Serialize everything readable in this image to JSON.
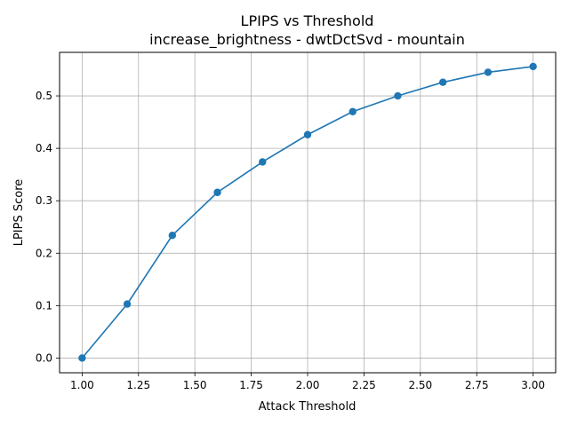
{
  "chart_data": {
    "type": "line",
    "title": "LPIPS vs Threshold",
    "subtitle": "increase_brightness - dwtDctSvd - mountain",
    "xlabel": "Attack Threshold",
    "ylabel": "LPIPS Score",
    "xlim": [
      0.9,
      3.1
    ],
    "ylim": [
      -0.028,
      0.583
    ],
    "x_ticks": [
      1.0,
      1.25,
      1.5,
      1.75,
      2.0,
      2.25,
      2.5,
      2.75,
      3.0
    ],
    "x_tick_labels": [
      "1.00",
      "1.25",
      "1.50",
      "1.75",
      "2.00",
      "2.25",
      "2.50",
      "2.75",
      "3.00"
    ],
    "y_ticks": [
      0.0,
      0.1,
      0.2,
      0.3,
      0.4,
      0.5
    ],
    "y_tick_labels": [
      "0.0",
      "0.1",
      "0.2",
      "0.3",
      "0.4",
      "0.5"
    ],
    "grid": true,
    "line_color": "#1f77b4",
    "marker": "circle",
    "series": [
      {
        "x": [
          1.0,
          1.2,
          1.4,
          1.6,
          1.8,
          2.0,
          2.2,
          2.4,
          2.6,
          2.8,
          3.0
        ],
        "values": [
          0.0,
          0.103,
          0.234,
          0.316,
          0.374,
          0.426,
          0.47,
          0.5,
          0.526,
          0.545,
          0.556
        ]
      }
    ]
  }
}
